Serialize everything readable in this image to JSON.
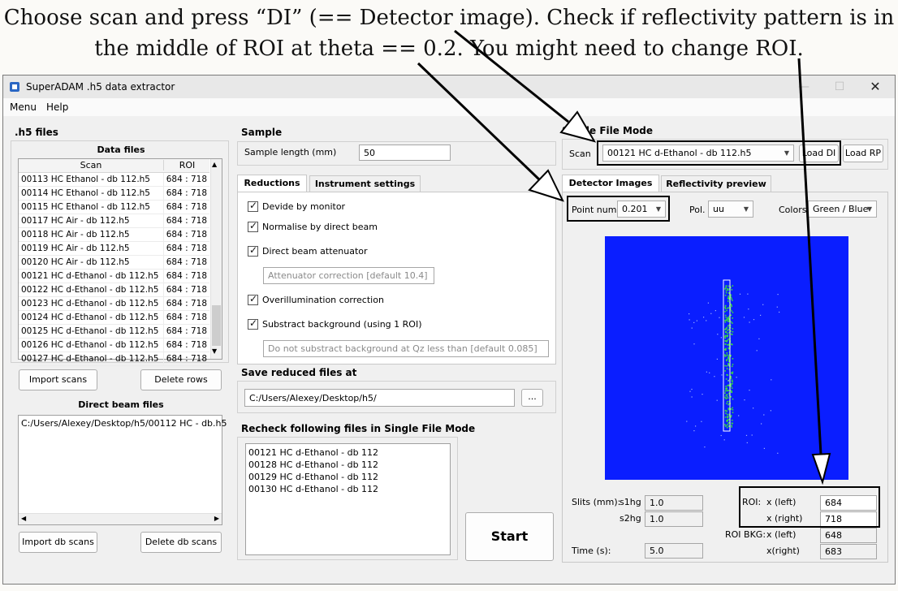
{
  "instructions": {
    "line1": "Choose scan and press “DI” (== Detector image). Check if reflectivity pattern is in",
    "line2": "the middle of ROI at theta == 0.2. You might need to change ROI."
  },
  "window": {
    "title": "SuperADAM .h5 data extractor",
    "controls": {
      "minimize": "—",
      "maximize": "☐",
      "close": "✕"
    },
    "menu": [
      "Menu",
      "Help"
    ]
  },
  "h5_files": {
    "title": ".h5 files",
    "data_files_title": "Data files",
    "columns": [
      "Scan",
      "ROI"
    ],
    "rows": [
      {
        "scan": "00113 HC Ethanol - db 112.h5",
        "roi": "684 : 718"
      },
      {
        "scan": "00114 HC Ethanol - db 112.h5",
        "roi": "684 : 718"
      },
      {
        "scan": "00115 HC Ethanol - db 112.h5",
        "roi": "684 : 718"
      },
      {
        "scan": "00117 HC Air - db 112.h5",
        "roi": "684 : 718"
      },
      {
        "scan": "00118 HC Air - db 112.h5",
        "roi": "684 : 718"
      },
      {
        "scan": "00119 HC Air - db 112.h5",
        "roi": "684 : 718"
      },
      {
        "scan": "00120 HC Air - db 112.h5",
        "roi": "684 : 718"
      },
      {
        "scan": "00121 HC d-Ethanol - db 112.h5",
        "roi": "684 : 718"
      },
      {
        "scan": "00122 HC d-Ethanol - db 112.h5",
        "roi": "684 : 718"
      },
      {
        "scan": "00123 HC d-Ethanol - db 112.h5",
        "roi": "684 : 718"
      },
      {
        "scan": "00124 HC d-Ethanol - db 112.h5",
        "roi": "684 : 718"
      },
      {
        "scan": "00125 HC d-Ethanol - db 112.h5",
        "roi": "684 : 718"
      },
      {
        "scan": "00126 HC d-Ethanol - db 112.h5",
        "roi": "684 : 718"
      },
      {
        "scan": "00127 HC d-Ethanol - db 112.h5",
        "roi": "684 : 718"
      }
    ],
    "import_scans": "Import scans",
    "delete_rows": "Delete rows",
    "direct_beam_title": "Direct beam files",
    "direct_beam_files": [
      "C:/Users/Alexey/Desktop/h5/00112 HC - db.h5"
    ],
    "import_db": "Import db scans",
    "delete_db": "Delete db scans"
  },
  "sample": {
    "title": "Sample",
    "length_label": "Sample length (mm)",
    "length_value": "50"
  },
  "reductions": {
    "tabs": [
      "Reductions",
      "Instrument settings"
    ],
    "options": {
      "monitor": "Devide by monitor",
      "direct_beam": "Normalise by direct beam",
      "attenuator": "Direct beam attenuator",
      "overillumination": "Overillumination correction",
      "background": "Substract background (using 1 ROI)"
    },
    "attenuator_placeholder": "Attenuator correction [default 10.4]",
    "qz_placeholder": "Do not substract background at Qz less than [default 0.085]"
  },
  "save": {
    "title": "Save reduced files at",
    "path": "C:/Users/Alexey/Desktop/h5/",
    "browse": "..."
  },
  "recheck": {
    "title": "Recheck following files in Single File Mode",
    "files": [
      "00121 HC d-Ethanol - db 112",
      "00128 HC d-Ethanol - db 112",
      "00129 HC d-Ethanol - db 112",
      "00130 HC d-Ethanol - db 112"
    ]
  },
  "start_button": "Start",
  "single": {
    "title": "Single File Mode",
    "scan_label": "Scan",
    "scan_value": "00121 HC d-Ethanol - db 112.h5",
    "load_di": "Load DI",
    "load_rp": "Load RP",
    "tabs": [
      "Detector Images",
      "Reflectivity preview"
    ],
    "point_label": "Point num.",
    "point_value": "0.201",
    "pol_label": "Pol.",
    "pol_value": "uu",
    "colors_label": "Colors",
    "colors_value": "Green / Blue",
    "slits_label": "Slits (mm):",
    "s1hg_label": "s1hg",
    "s1hg_value": "1.0",
    "s2hg_label": "s2hg",
    "s2hg_value": "1.0",
    "time_label": "Time (s):",
    "time_value": "5.0",
    "roi_label": "ROI:",
    "roi_left_label": "x (left)",
    "roi_left": "684",
    "roi_right_label": "x (right)",
    "roi_right": "718",
    "bkg_label": "ROI BKG:",
    "bkg_left_label": "x (left)",
    "bkg_left": "648",
    "bkg_right_label": "x(right)",
    "bkg_right": "683"
  },
  "colors": {
    "detector_background": "#0a1eff",
    "detector_signal": "#3ae03a",
    "annotation": "#000000"
  }
}
